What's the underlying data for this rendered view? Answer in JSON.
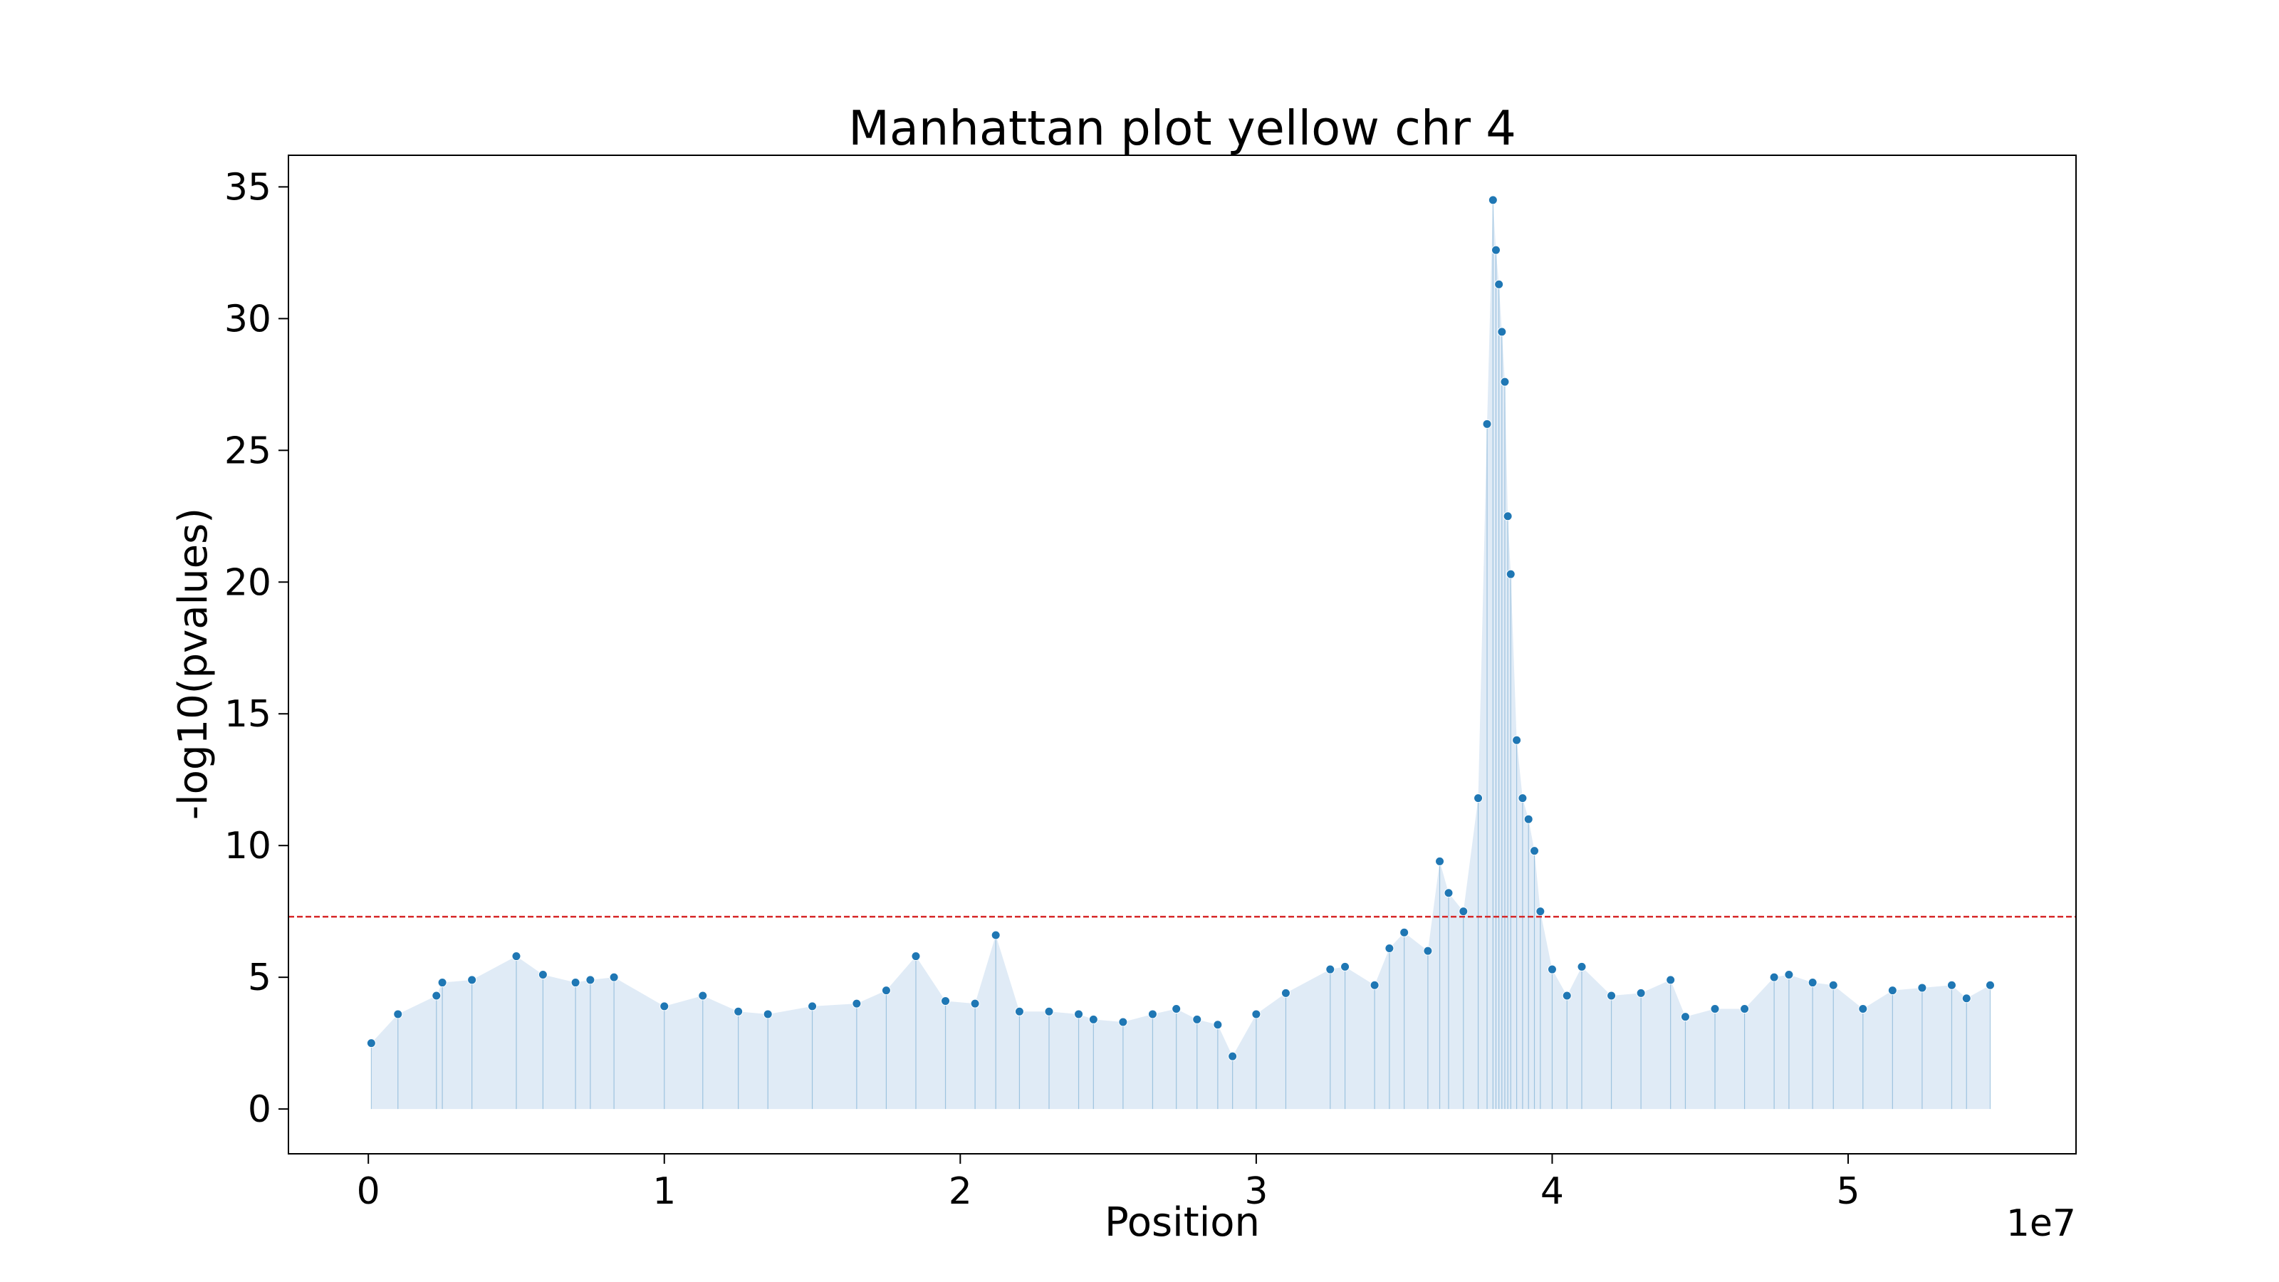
{
  "chart_data": {
    "type": "scatter",
    "title": "Manhattan plot yellow chr 4",
    "xlabel": "Position",
    "ylabel": "-log10(pvalues)",
    "x_offset_label": "1e7",
    "xlim": [
      -2700000,
      57700000
    ],
    "ylim": [
      -1.7,
      36.2
    ],
    "x_ticks": [
      0,
      10000000,
      20000000,
      30000000,
      40000000,
      50000000
    ],
    "x_tick_labels": [
      "0",
      "1",
      "2",
      "3",
      "4",
      "5"
    ],
    "y_ticks": [
      0,
      5,
      10,
      15,
      20,
      25,
      30,
      35
    ],
    "y_tick_labels": [
      "0",
      "5",
      "10",
      "15",
      "20",
      "25",
      "30",
      "35"
    ],
    "significance_threshold": 7.3,
    "threshold_color": "#d62728",
    "point_color": "#1f77b4",
    "fill_color": "#c6dbef",
    "grid": false,
    "series": [
      {
        "x": [
          100000,
          1000000,
          2300000,
          2500000,
          3500000,
          5000000,
          5900000,
          7000000,
          7500000,
          8300000,
          10000000,
          11300000,
          12500000,
          13500000,
          15000000,
          16500000,
          17500000,
          18500000,
          19500000,
          20500000,
          21200000,
          22000000,
          23000000,
          24000000,
          24500000,
          25500000,
          26500000,
          27300000,
          28000000,
          28700000,
          29200000,
          30000000,
          31000000,
          32500000,
          33000000,
          34000000,
          34500000,
          35000000,
          35800000,
          36200000,
          36500000,
          37000000,
          37500000,
          37800000,
          38000000,
          38100000,
          38200000,
          38300000,
          38400000,
          38500000,
          38600000,
          38800000,
          39000000,
          39200000,
          39400000,
          39600000,
          40000000,
          40500000,
          41000000,
          42000000,
          43000000,
          44000000,
          44500000,
          45500000,
          46500000,
          47500000,
          48000000,
          48800000,
          49500000,
          50500000,
          51500000,
          52500000,
          53500000,
          54000000,
          54800000
        ],
        "y": [
          2.5,
          3.6,
          4.3,
          4.8,
          4.9,
          5.8,
          5.1,
          4.8,
          4.9,
          5.0,
          3.9,
          4.3,
          3.7,
          3.6,
          3.9,
          4.0,
          4.5,
          5.8,
          4.1,
          4.0,
          6.6,
          3.7,
          3.7,
          3.6,
          3.4,
          3.3,
          3.6,
          3.8,
          3.4,
          3.2,
          2.0,
          3.6,
          4.4,
          5.3,
          5.4,
          4.7,
          6.1,
          6.7,
          6.0,
          9.4,
          8.2,
          7.5,
          11.8,
          26.0,
          34.5,
          32.6,
          31.3,
          29.5,
          27.6,
          22.5,
          20.3,
          14.0,
          11.8,
          11.0,
          9.8,
          7.5,
          5.3,
          4.3,
          5.4,
          4.3,
          4.4,
          4.9,
          3.5,
          3.8,
          3.8,
          5.0,
          5.1,
          4.8,
          4.7,
          3.8,
          4.5,
          4.6,
          4.7,
          4.2,
          4.7
        ]
      }
    ]
  }
}
